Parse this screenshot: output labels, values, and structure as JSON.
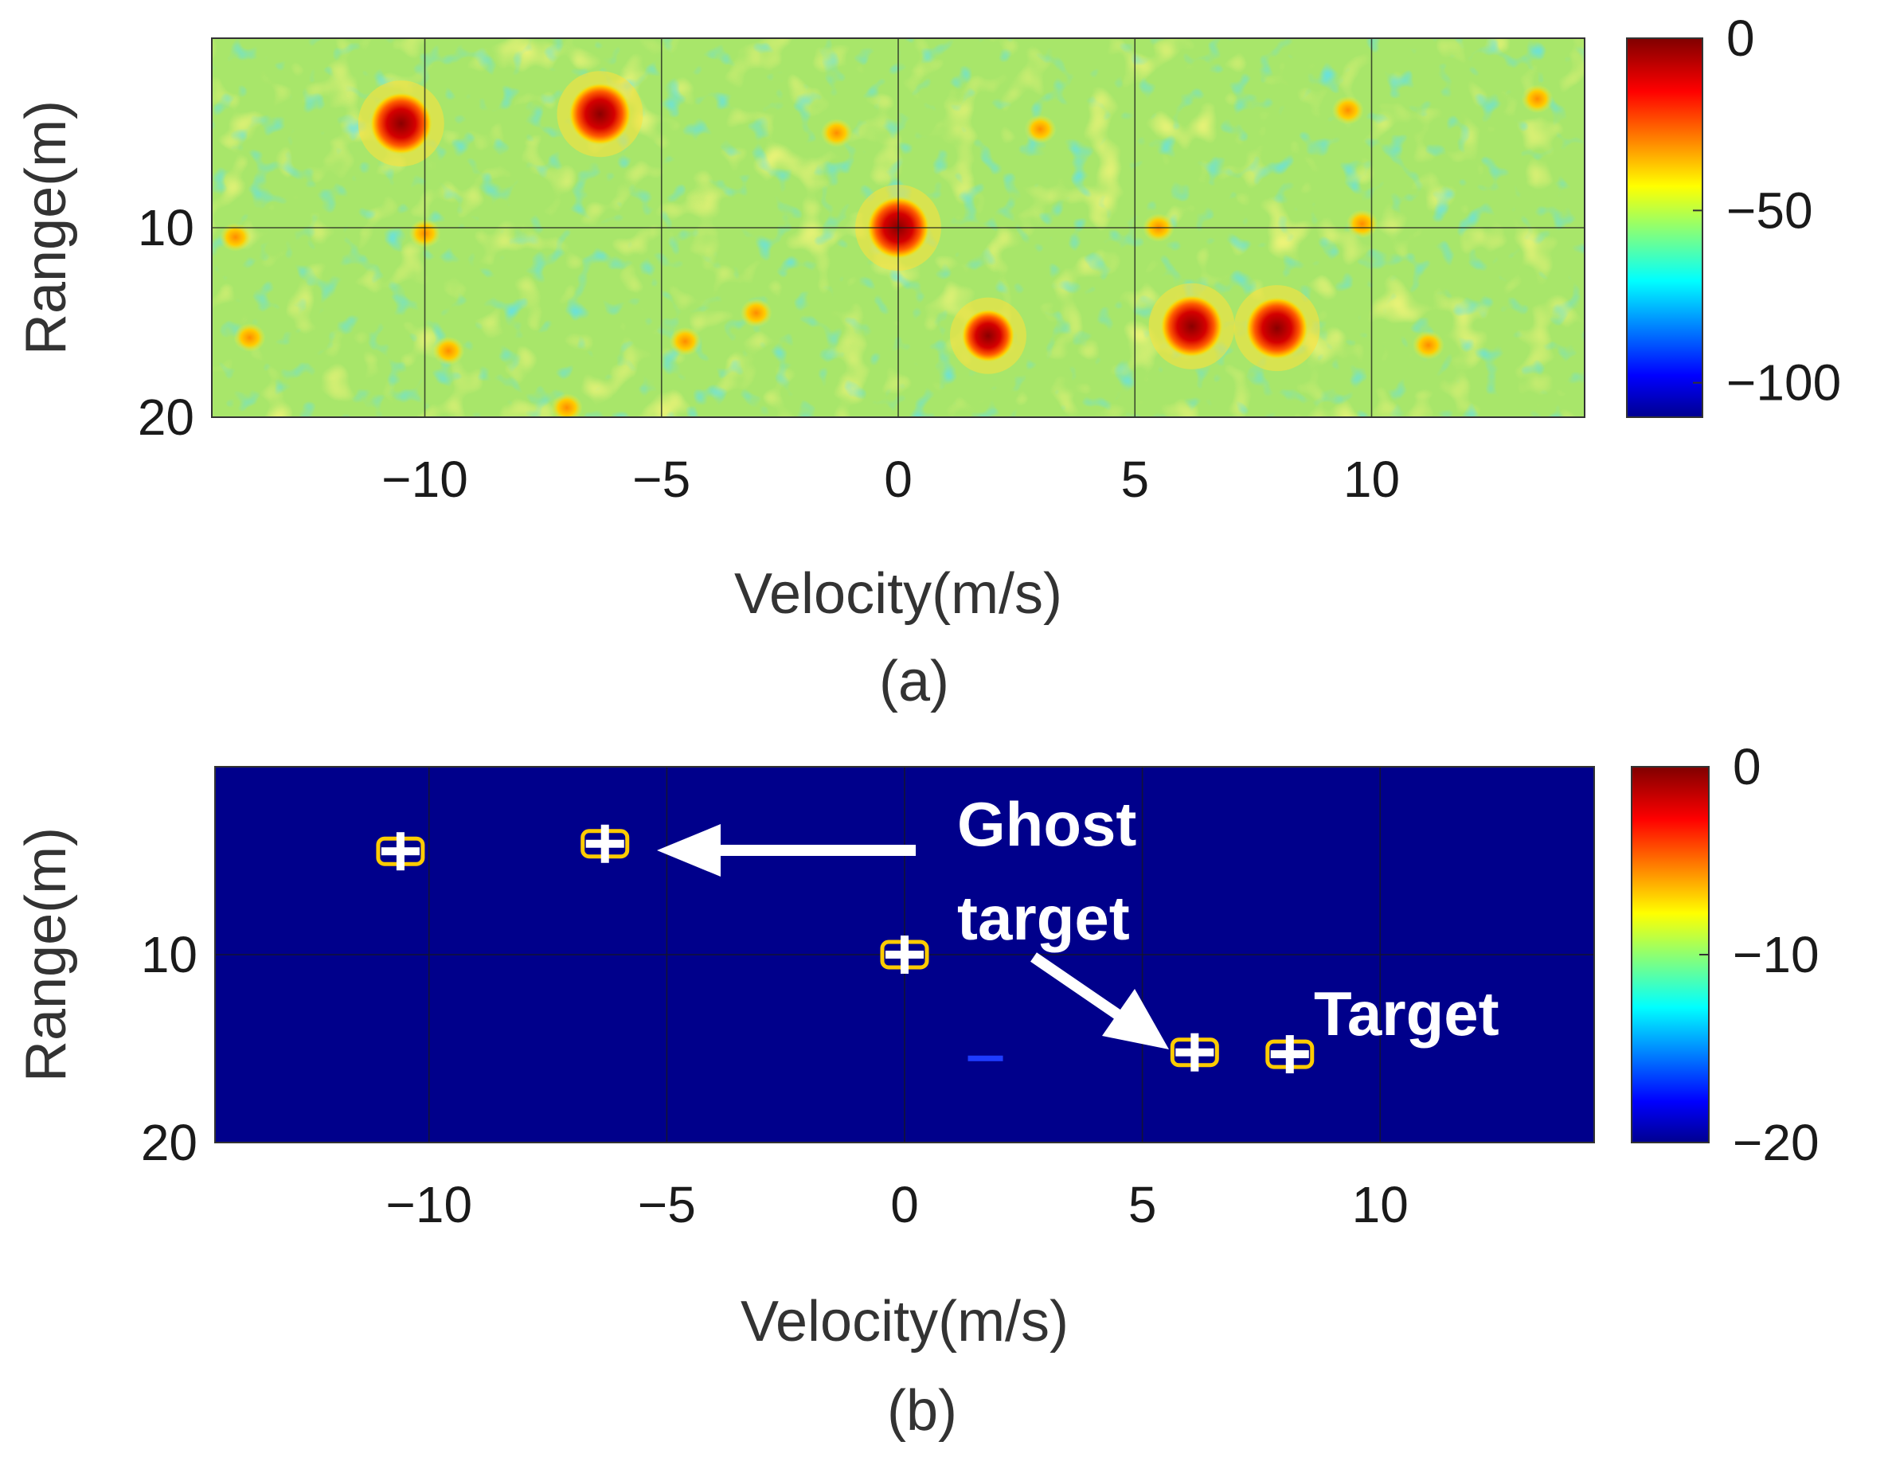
{
  "chart_data": [
    {
      "type": "heatmap",
      "caption": "(a)",
      "xlabel": "Velocity(m/s)",
      "ylabel": "Range(m)",
      "xlim": [
        -14.5,
        14.5
      ],
      "ylim": [
        20,
        0
      ],
      "xticks": [
        "−10",
        "−5",
        "0",
        "5",
        "10"
      ],
      "xtick_values": [
        -10,
        -5,
        0,
        5,
        10
      ],
      "yticks": [
        "10",
        "20"
      ],
      "ytick_values": [
        10,
        20
      ],
      "grid": true,
      "colorbar": {
        "min": -110,
        "max": 0,
        "ticks": [
          "0",
          "−50",
          "−100"
        ],
        "tick_values": [
          0,
          -50,
          -100
        ]
      },
      "background_level": -45,
      "peaks": [
        {
          "x": -10.5,
          "y": 4.5,
          "level": 0
        },
        {
          "x": -6.3,
          "y": 4.0,
          "level": 0
        },
        {
          "x": 0,
          "y": 10.0,
          "level": 0
        },
        {
          "x": 1.9,
          "y": 15.7,
          "level": -3
        },
        {
          "x": 6.2,
          "y": 15.2,
          "level": 0
        },
        {
          "x": 8.0,
          "y": 15.3,
          "level": 0
        }
      ],
      "sidelobes": [
        {
          "x": -14.0,
          "y": 10.5,
          "level": -30
        },
        {
          "x": -10.0,
          "y": 10.3,
          "level": -30
        },
        {
          "x": -13.7,
          "y": 15.8,
          "level": -35
        },
        {
          "x": -9.5,
          "y": 16.5,
          "level": -35
        },
        {
          "x": -7.0,
          "y": 19.5,
          "level": -30
        },
        {
          "x": -1.3,
          "y": 5.0,
          "level": -35
        },
        {
          "x": 3.0,
          "y": 4.8,
          "level": -35
        },
        {
          "x": 5.5,
          "y": 10.0,
          "level": -35
        },
        {
          "x": 9.8,
          "y": 9.8,
          "level": -32
        },
        {
          "x": 9.5,
          "y": 3.8,
          "level": -35
        },
        {
          "x": 11.2,
          "y": 16.2,
          "level": -35
        },
        {
          "x": -3.0,
          "y": 14.5,
          "level": -35
        },
        {
          "x": -4.5,
          "y": 16.0,
          "level": -35
        },
        {
          "x": 13.5,
          "y": 3.2,
          "level": -35
        }
      ]
    },
    {
      "type": "heatmap",
      "caption": "(b)",
      "xlabel": "Velocity(m/s)",
      "ylabel": "Range(m)",
      "xlim": [
        -14.5,
        14.5
      ],
      "ylim": [
        20,
        0
      ],
      "xticks": [
        "−10",
        "−5",
        "0",
        "5",
        "10"
      ],
      "xtick_values": [
        -10,
        -5,
        0,
        5,
        10
      ],
      "yticks": [
        "10",
        "20"
      ],
      "ytick_values": [
        10,
        20
      ],
      "grid": true,
      "colorbar": {
        "min": -20,
        "max": 0,
        "ticks": [
          "0",
          "−10",
          "−20"
        ],
        "tick_values": [
          0,
          -10,
          -20
        ]
      },
      "background_level": -20,
      "detections": [
        {
          "x": -10.6,
          "y": 4.5
        },
        {
          "x": -6.3,
          "y": 4.1
        },
        {
          "x": 0,
          "y": 10.0
        },
        {
          "x": 6.1,
          "y": 15.2
        },
        {
          "x": 8.1,
          "y": 15.3
        }
      ],
      "weak_marks": [
        {
          "x": 1.7,
          "y": 15.5
        }
      ],
      "annotations": {
        "ghost": "Ghost\ntarget",
        "target": "Target"
      }
    }
  ]
}
